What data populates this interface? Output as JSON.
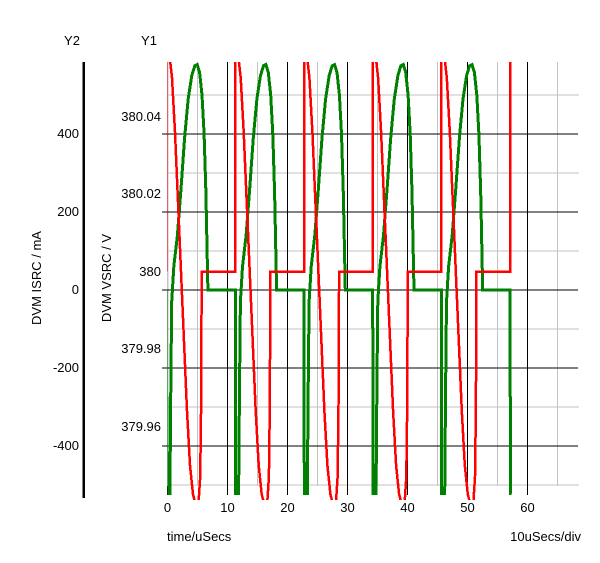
{
  "labels": {
    "y2_name": "Y2",
    "y1_name": "Y1",
    "y2_axis_title": "DVM ISRC / mA",
    "y1_axis_title": "DVM VSRC / V",
    "x_axis_title": "time/uSecs",
    "x_scale_note": "10uSecs/div"
  },
  "axes": {
    "x": {
      "tick_labels": [
        "0",
        "10",
        "20",
        "30",
        "40",
        "50",
        "60"
      ],
      "tick_values": [
        0,
        10,
        20,
        30,
        40,
        50,
        60
      ],
      "unit": "uSecs",
      "per_div": 10,
      "range_us": [
        0,
        68.6
      ]
    },
    "y1": {
      "tick_labels": [
        "380.04",
        "380.02",
        "380",
        "379.98",
        "379.96"
      ],
      "tick_values": [
        380.04,
        380.02,
        380,
        379.98,
        379.96
      ],
      "unit": "V",
      "range": [
        379.941,
        380.054
      ]
    },
    "y2": {
      "tick_labels": [
        "400",
        "200",
        "0",
        "-200",
        "-400"
      ],
      "tick_values": [
        400,
        200,
        0,
        -200,
        -400
      ],
      "unit": "mA",
      "range": [
        -535,
        587
      ]
    }
  },
  "chart_data": {
    "type": "line",
    "x_unit": "uSecs",
    "grid": {
      "major_color": "#000000",
      "minor_color": "#c3c3c3",
      "y1_axis_line_color": "#c3c3c3"
    },
    "series": [
      {
        "name": "DVM ISRC",
        "axis": "y2",
        "unit": "mA",
        "color": "#008000",
        "stroke_px": 3,
        "description": "Resonant current bursts: narrow dip to -522 mA at each switching instant, sine lobe peaking +578 mA, flat 0 mA between bursts",
        "period_us": 11.45,
        "first_jump_us": -0.15,
        "num_periods": 6,
        "end_us": 57.3,
        "flat_level": 0,
        "period_keypoints": [
          [
            0.0,
            0
          ],
          [
            0.05,
            -522
          ],
          [
            0.55,
            -522
          ],
          [
            0.7,
            -250
          ],
          [
            0.85,
            -30
          ],
          [
            1.2,
            60
          ],
          [
            1.8,
            140
          ],
          [
            2.4,
            260
          ],
          [
            3.0,
            390
          ],
          [
            3.6,
            490
          ],
          [
            4.2,
            550
          ],
          [
            4.7,
            575
          ],
          [
            5.1,
            578
          ],
          [
            5.5,
            558
          ],
          [
            5.9,
            500
          ],
          [
            6.25,
            400
          ],
          [
            6.55,
            250
          ],
          [
            6.75,
            100
          ],
          [
            6.88,
            0
          ],
          [
            11.45,
            0
          ]
        ]
      },
      {
        "name": "DVM VSRC",
        "axis": "y1",
        "unit": "V",
        "color": "#ff0000",
        "stroke_px": 2.5,
        "description": "380 V source: jumps above 380.054 V (clipped at top), sine dip to ~379.94 V (clipped at bottom), steep recovery, flat at 380.000 V between bursts",
        "period_us": 11.45,
        "first_jump_us": -0.15,
        "num_periods": 6,
        "end_us": 57.3,
        "flat_level": 380.0,
        "period_keypoints": [
          [
            0.0,
            380.0
          ],
          [
            0.0,
            380.057
          ],
          [
            0.4,
            380.057
          ],
          [
            0.9,
            380.05
          ],
          [
            1.4,
            380.036
          ],
          [
            1.9,
            380.018
          ],
          [
            2.4,
            380.0
          ],
          [
            2.9,
            379.982
          ],
          [
            3.4,
            379.964
          ],
          [
            3.9,
            379.95
          ],
          [
            4.4,
            379.9425
          ],
          [
            4.9,
            379.9395
          ],
          [
            5.35,
            379.941
          ],
          [
            5.6,
            379.947
          ],
          [
            5.75,
            379.965
          ],
          [
            5.85,
            380.0
          ],
          [
            11.45,
            380.0
          ]
        ]
      }
    ]
  }
}
